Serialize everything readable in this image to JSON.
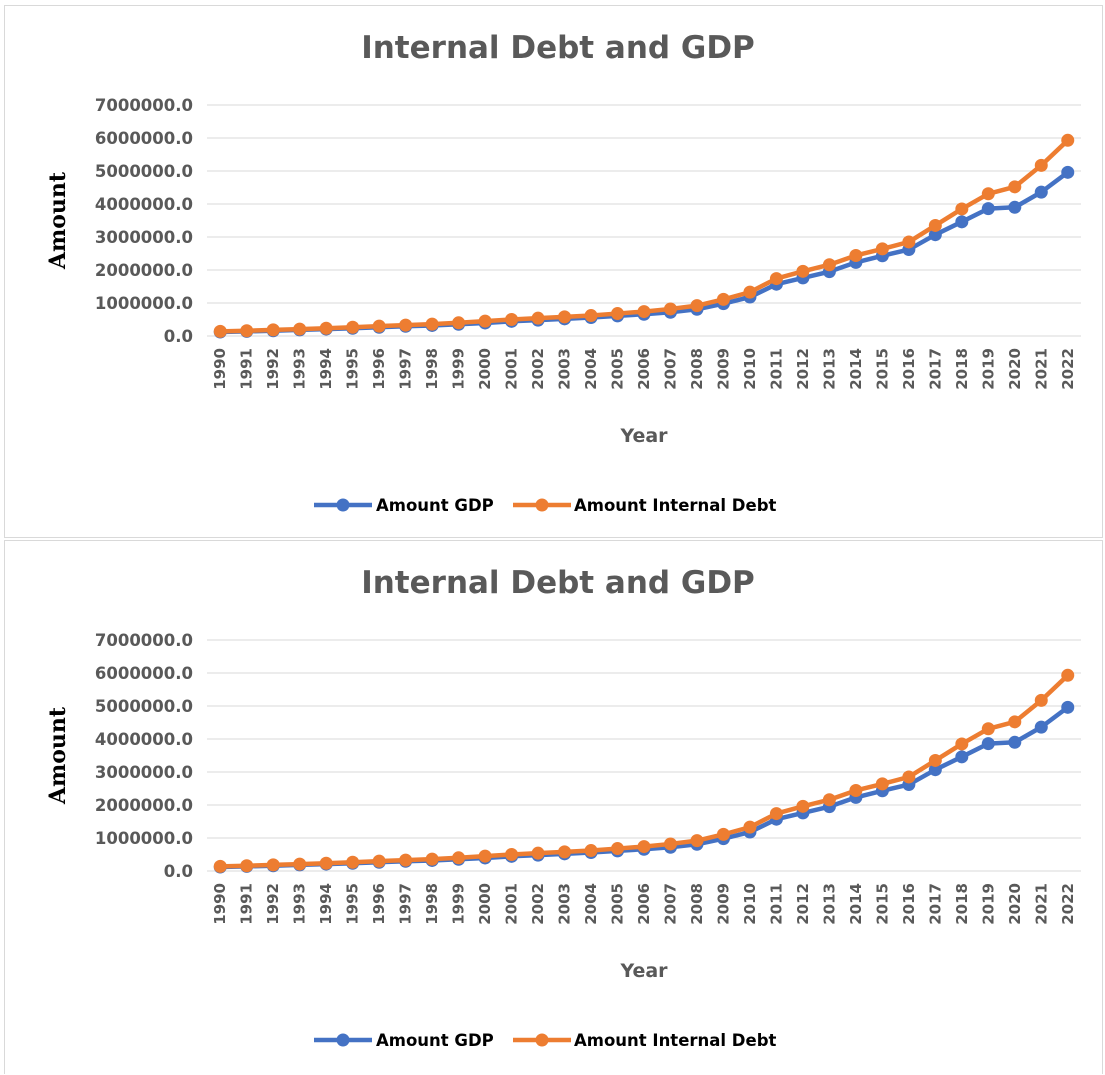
{
  "chart_data": [
    {
      "type": "line",
      "title": "Internal Debt and GDP",
      "xlabel": "Year",
      "ylabel": "Amount",
      "ylim": [
        0,
        7000000
      ],
      "yticks": [
        "0.0",
        "1000000.0",
        "2000000.0",
        "3000000.0",
        "4000000.0",
        "5000000.0",
        "6000000.0",
        "7000000.0"
      ],
      "grid": true,
      "legend_position": "bottom",
      "categories": [
        "1990",
        "1991",
        "1992",
        "1993",
        "1994",
        "1995",
        "1996",
        "1997",
        "1998",
        "1999",
        "2000",
        "2001",
        "2002",
        "2003",
        "2004",
        "2005",
        "2006",
        "2007",
        "2008",
        "2009",
        "2010",
        "2011",
        "2012",
        "2013",
        "2014",
        "2015",
        "2016",
        "2017",
        "2018",
        "2019",
        "2020",
        "2021",
        "2022"
      ],
      "series": [
        {
          "name": "Amount GDP",
          "color": "#4472c4",
          "values": [
            120000,
            140000,
            160000,
            185000,
            210000,
            235000,
            265000,
            295000,
            320000,
            355000,
            395000,
            445000,
            480000,
            520000,
            560000,
            610000,
            660000,
            720000,
            810000,
            980000,
            1180000,
            1570000,
            1760000,
            1950000,
            2230000,
            2430000,
            2620000,
            3070000,
            3460000,
            3860000,
            3900000,
            4360000,
            4960000
          ]
        },
        {
          "name": "Amount Internal  Debt",
          "color": "#ed7d31",
          "values": [
            140000,
            160000,
            185000,
            210000,
            235000,
            265000,
            300000,
            330000,
            360000,
            400000,
            450000,
            500000,
            540000,
            580000,
            620000,
            680000,
            740000,
            820000,
            920000,
            1110000,
            1330000,
            1740000,
            1960000,
            2160000,
            2440000,
            2640000,
            2850000,
            3350000,
            3850000,
            4310000,
            4520000,
            5170000,
            5930000
          ]
        }
      ]
    },
    {
      "type": "line",
      "title": "Internal Debt and GDP",
      "xlabel": "Year",
      "ylabel": "Amount",
      "ylim": [
        0,
        7000000
      ],
      "yticks": [
        "0.0",
        "1000000.0",
        "2000000.0",
        "3000000.0",
        "4000000.0",
        "5000000.0",
        "6000000.0",
        "7000000.0"
      ],
      "grid": true,
      "legend_position": "bottom",
      "categories": [
        "1990",
        "1991",
        "1992",
        "1993",
        "1994",
        "1995",
        "1996",
        "1997",
        "1998",
        "1999",
        "2000",
        "2001",
        "2002",
        "2003",
        "2004",
        "2005",
        "2006",
        "2007",
        "2008",
        "2009",
        "2010",
        "2011",
        "2012",
        "2013",
        "2014",
        "2015",
        "2016",
        "2017",
        "2018",
        "2019",
        "2020",
        "2021",
        "2022"
      ],
      "series": [
        {
          "name": "Amount GDP",
          "color": "#4472c4",
          "values": [
            120000,
            140000,
            160000,
            185000,
            210000,
            235000,
            265000,
            295000,
            320000,
            355000,
            395000,
            445000,
            480000,
            520000,
            560000,
            610000,
            660000,
            720000,
            810000,
            980000,
            1180000,
            1570000,
            1760000,
            1950000,
            2230000,
            2430000,
            2620000,
            3070000,
            3460000,
            3860000,
            3900000,
            4360000,
            4960000
          ]
        },
        {
          "name": "Amount Internal  Debt",
          "color": "#ed7d31",
          "values": [
            140000,
            160000,
            185000,
            210000,
            235000,
            265000,
            300000,
            330000,
            360000,
            400000,
            450000,
            500000,
            540000,
            580000,
            620000,
            680000,
            740000,
            820000,
            920000,
            1110000,
            1330000,
            1740000,
            1960000,
            2160000,
            2440000,
            2640000,
            2850000,
            3350000,
            3850000,
            4310000,
            4520000,
            5170000,
            5930000
          ]
        }
      ]
    }
  ]
}
